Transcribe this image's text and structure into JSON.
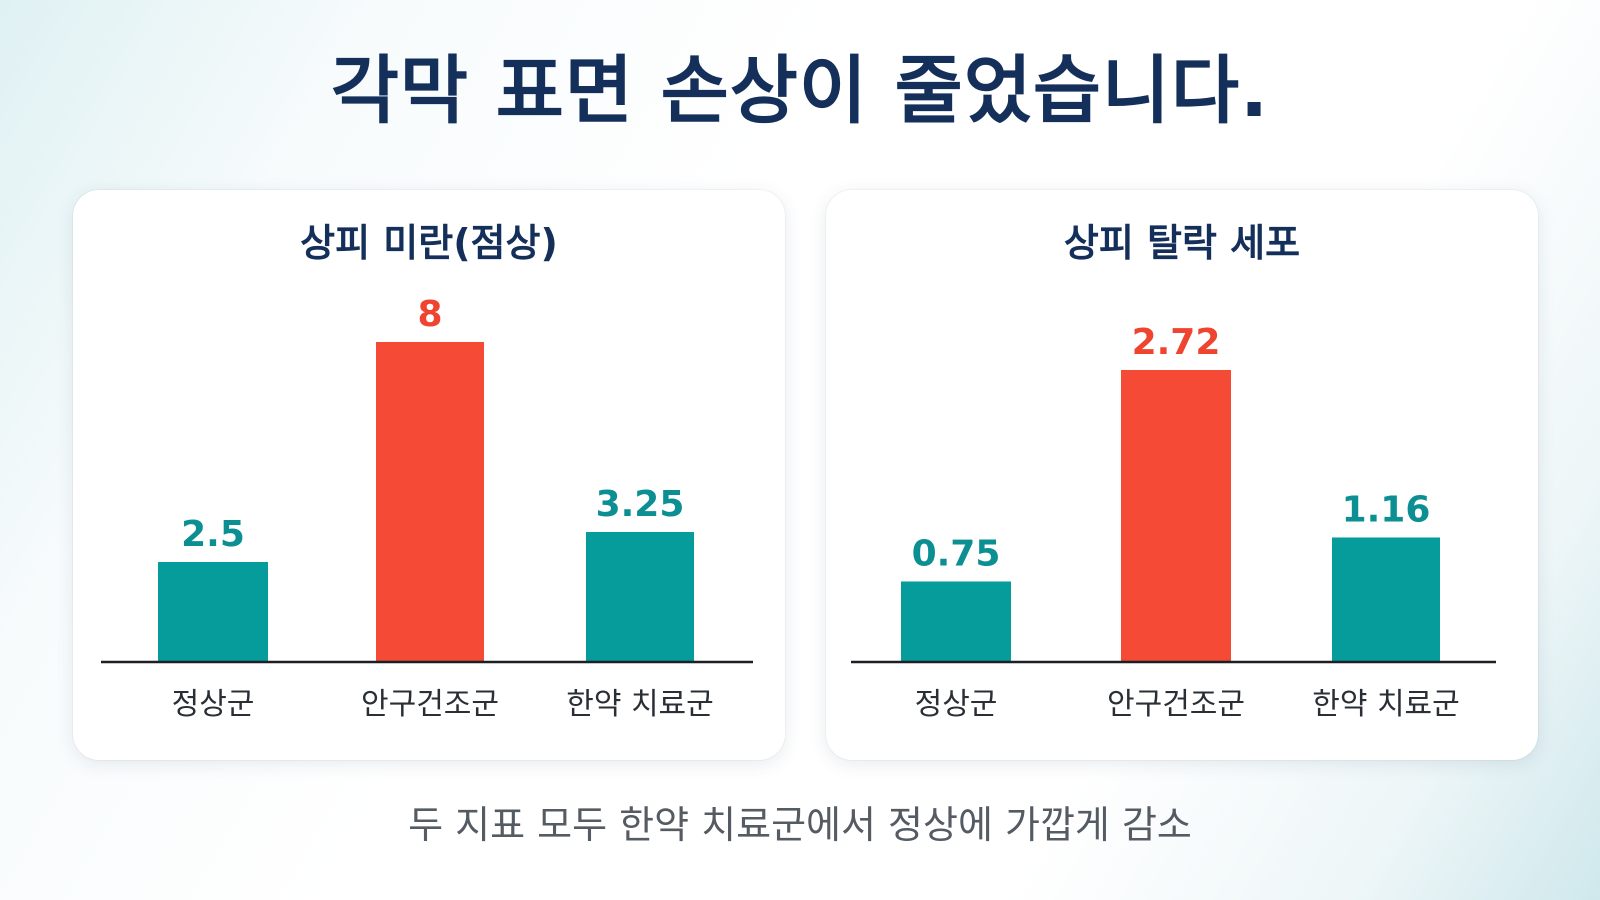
{
  "title": "각막 표면 손상이 줄었습니다.",
  "footer": "두 지표 모두 한약 치료군에서 정상에 가깝게 감소",
  "colors": {
    "teal": "#079c9c",
    "red": "#f54a36",
    "teal_label": "#0b8f92",
    "red_label": "#ee4430"
  },
  "chart_data": [
    {
      "type": "bar",
      "title": "상피 미란(점상)",
      "categories": [
        "정상군",
        "안구건조군",
        "한약 치료군"
      ],
      "values": [
        2.5,
        8,
        3.25
      ],
      "value_labels": [
        "2.5",
        "8",
        "3.25"
      ],
      "highlight_index": 1,
      "ylim": [
        0,
        8
      ],
      "grid": false,
      "legend": "none"
    },
    {
      "type": "bar",
      "title": "상피 탈락 세포",
      "categories": [
        "정상군",
        "안구건조군",
        "한약 치료군"
      ],
      "values": [
        0.75,
        2.72,
        1.16
      ],
      "value_labels": [
        "0.75",
        "2.72",
        "1.16"
      ],
      "highlight_index": 1,
      "ylim": [
        0,
        2.72
      ],
      "grid": false,
      "legend": "none"
    }
  ]
}
